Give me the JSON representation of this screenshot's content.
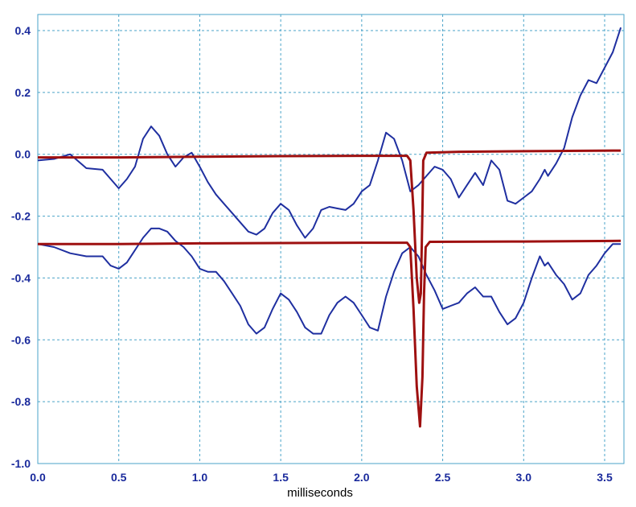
{
  "chart_data": {
    "type": "line",
    "title": "",
    "xlabel": "milliseconds",
    "ylabel": "",
    "xlim": [
      0.0,
      3.6
    ],
    "ylim": [
      -1.0,
      0.42
    ],
    "grid": true,
    "x_ticks": [
      "0.0",
      "0.5",
      "1.0",
      "1.5",
      "2.0",
      "2.5",
      "3.0",
      "3.5"
    ],
    "y_ticks": [
      "0.4",
      "0.2",
      "0.0",
      "-0.2",
      "-0.4",
      "-0.6",
      "-0.8",
      "-1.0"
    ],
    "colors": {
      "blue": "#1f2fa0",
      "red": "#9e1010",
      "grid": "#4aa3c8",
      "tick": "#1a2a9c"
    },
    "series": [
      {
        "color": "#1f2fa0",
        "points": [
          [
            0.0,
            -0.02
          ],
          [
            0.1,
            -0.015
          ],
          [
            0.2,
            0.0
          ],
          [
            0.3,
            -0.045
          ],
          [
            0.4,
            -0.05
          ],
          [
            0.5,
            -0.11
          ],
          [
            0.55,
            -0.08
          ],
          [
            0.6,
            -0.04
          ],
          [
            0.65,
            0.05
          ],
          [
            0.7,
            0.09
          ],
          [
            0.75,
            0.06
          ],
          [
            0.8,
            0.0
          ],
          [
            0.85,
            -0.04
          ],
          [
            0.9,
            -0.01
          ],
          [
            0.95,
            0.005
          ],
          [
            1.0,
            -0.04
          ],
          [
            1.05,
            -0.09
          ],
          [
            1.1,
            -0.13
          ],
          [
            1.15,
            -0.16
          ],
          [
            1.2,
            -0.19
          ],
          [
            1.25,
            -0.22
          ],
          [
            1.3,
            -0.25
          ],
          [
            1.35,
            -0.26
          ],
          [
            1.4,
            -0.24
          ],
          [
            1.45,
            -0.19
          ],
          [
            1.5,
            -0.16
          ],
          [
            1.55,
            -0.18
          ],
          [
            1.6,
            -0.23
          ],
          [
            1.65,
            -0.27
          ],
          [
            1.7,
            -0.24
          ],
          [
            1.75,
            -0.18
          ],
          [
            1.8,
            -0.17
          ],
          [
            1.85,
            -0.175
          ],
          [
            1.9,
            -0.18
          ],
          [
            1.95,
            -0.16
          ],
          [
            2.0,
            -0.12
          ],
          [
            2.05,
            -0.1
          ],
          [
            2.1,
            -0.02
          ],
          [
            2.15,
            0.07
          ],
          [
            2.2,
            0.05
          ],
          [
            2.25,
            -0.02
          ],
          [
            2.3,
            -0.12
          ],
          [
            2.35,
            -0.1
          ],
          [
            2.4,
            -0.07
          ],
          [
            2.45,
            -0.04
          ],
          [
            2.5,
            -0.05
          ],
          [
            2.55,
            -0.08
          ],
          [
            2.6,
            -0.14
          ],
          [
            2.65,
            -0.1
          ],
          [
            2.7,
            -0.06
          ],
          [
            2.75,
            -0.1
          ],
          [
            2.8,
            -0.02
          ],
          [
            2.85,
            -0.05
          ],
          [
            2.9,
            -0.15
          ],
          [
            2.95,
            -0.16
          ],
          [
            3.0,
            -0.14
          ],
          [
            3.05,
            -0.12
          ],
          [
            3.1,
            -0.08
          ],
          [
            3.13,
            -0.05
          ],
          [
            3.15,
            -0.07
          ],
          [
            3.2,
            -0.03
          ],
          [
            3.25,
            0.02
          ],
          [
            3.3,
            0.12
          ],
          [
            3.35,
            0.19
          ],
          [
            3.4,
            0.24
          ],
          [
            3.45,
            0.23
          ],
          [
            3.5,
            0.28
          ],
          [
            3.55,
            0.33
          ],
          [
            3.6,
            0.41
          ]
        ]
      },
      {
        "color": "#1f2fa0",
        "points": [
          [
            0.0,
            -0.29
          ],
          [
            0.1,
            -0.3
          ],
          [
            0.2,
            -0.32
          ],
          [
            0.3,
            -0.33
          ],
          [
            0.4,
            -0.33
          ],
          [
            0.45,
            -0.36
          ],
          [
            0.5,
            -0.37
          ],
          [
            0.55,
            -0.35
          ],
          [
            0.6,
            -0.31
          ],
          [
            0.65,
            -0.27
          ],
          [
            0.7,
            -0.24
          ],
          [
            0.75,
            -0.24
          ],
          [
            0.8,
            -0.25
          ],
          [
            0.85,
            -0.28
          ],
          [
            0.9,
            -0.3
          ],
          [
            0.95,
            -0.33
          ],
          [
            1.0,
            -0.37
          ],
          [
            1.05,
            -0.38
          ],
          [
            1.1,
            -0.38
          ],
          [
            1.15,
            -0.41
          ],
          [
            1.2,
            -0.45
          ],
          [
            1.25,
            -0.49
          ],
          [
            1.3,
            -0.55
          ],
          [
            1.35,
            -0.58
          ],
          [
            1.4,
            -0.56
          ],
          [
            1.45,
            -0.5
          ],
          [
            1.5,
            -0.45
          ],
          [
            1.55,
            -0.47
          ],
          [
            1.6,
            -0.51
          ],
          [
            1.65,
            -0.56
          ],
          [
            1.7,
            -0.58
          ],
          [
            1.75,
            -0.58
          ],
          [
            1.8,
            -0.52
          ],
          [
            1.85,
            -0.48
          ],
          [
            1.9,
            -0.46
          ],
          [
            1.95,
            -0.48
          ],
          [
            2.0,
            -0.52
          ],
          [
            2.05,
            -0.56
          ],
          [
            2.1,
            -0.57
          ],
          [
            2.15,
            -0.46
          ],
          [
            2.2,
            -0.38
          ],
          [
            2.25,
            -0.32
          ],
          [
            2.3,
            -0.3
          ],
          [
            2.35,
            -0.33
          ],
          [
            2.4,
            -0.39
          ],
          [
            2.45,
            -0.44
          ],
          [
            2.5,
            -0.5
          ],
          [
            2.55,
            -0.49
          ],
          [
            2.6,
            -0.48
          ],
          [
            2.65,
            -0.45
          ],
          [
            2.7,
            -0.43
          ],
          [
            2.75,
            -0.46
          ],
          [
            2.8,
            -0.46
          ],
          [
            2.85,
            -0.51
          ],
          [
            2.9,
            -0.55
          ],
          [
            2.95,
            -0.53
          ],
          [
            3.0,
            -0.48
          ],
          [
            3.05,
            -0.4
          ],
          [
            3.1,
            -0.33
          ],
          [
            3.13,
            -0.36
          ],
          [
            3.15,
            -0.35
          ],
          [
            3.2,
            -0.39
          ],
          [
            3.25,
            -0.42
          ],
          [
            3.3,
            -0.47
          ],
          [
            3.35,
            -0.45
          ],
          [
            3.4,
            -0.39
          ],
          [
            3.45,
            -0.36
          ],
          [
            3.5,
            -0.32
          ],
          [
            3.55,
            -0.29
          ],
          [
            3.6,
            -0.29
          ]
        ]
      },
      {
        "color": "#9e1010",
        "points": [
          [
            0.0,
            -0.01
          ],
          [
            0.5,
            -0.01
          ],
          [
            1.0,
            -0.008
          ],
          [
            1.5,
            -0.006
          ],
          [
            2.0,
            -0.005
          ],
          [
            2.28,
            -0.005
          ],
          [
            2.3,
            -0.02
          ],
          [
            2.32,
            -0.18
          ],
          [
            2.34,
            -0.4
          ],
          [
            2.355,
            -0.48
          ],
          [
            2.365,
            -0.45
          ],
          [
            2.375,
            -0.18
          ],
          [
            2.38,
            -0.02
          ],
          [
            2.4,
            0.005
          ],
          [
            2.6,
            0.008
          ],
          [
            3.0,
            0.01
          ],
          [
            3.6,
            0.012
          ]
        ]
      },
      {
        "color": "#9e1010",
        "points": [
          [
            0.0,
            -0.29
          ],
          [
            0.5,
            -0.29
          ],
          [
            1.0,
            -0.288
          ],
          [
            1.5,
            -0.287
          ],
          [
            2.0,
            -0.286
          ],
          [
            2.28,
            -0.286
          ],
          [
            2.3,
            -0.3
          ],
          [
            2.32,
            -0.5
          ],
          [
            2.34,
            -0.75
          ],
          [
            2.36,
            -0.88
          ],
          [
            2.375,
            -0.72
          ],
          [
            2.385,
            -0.45
          ],
          [
            2.395,
            -0.3
          ],
          [
            2.42,
            -0.283
          ],
          [
            3.0,
            -0.282
          ],
          [
            3.6,
            -0.28
          ]
        ]
      }
    ]
  }
}
